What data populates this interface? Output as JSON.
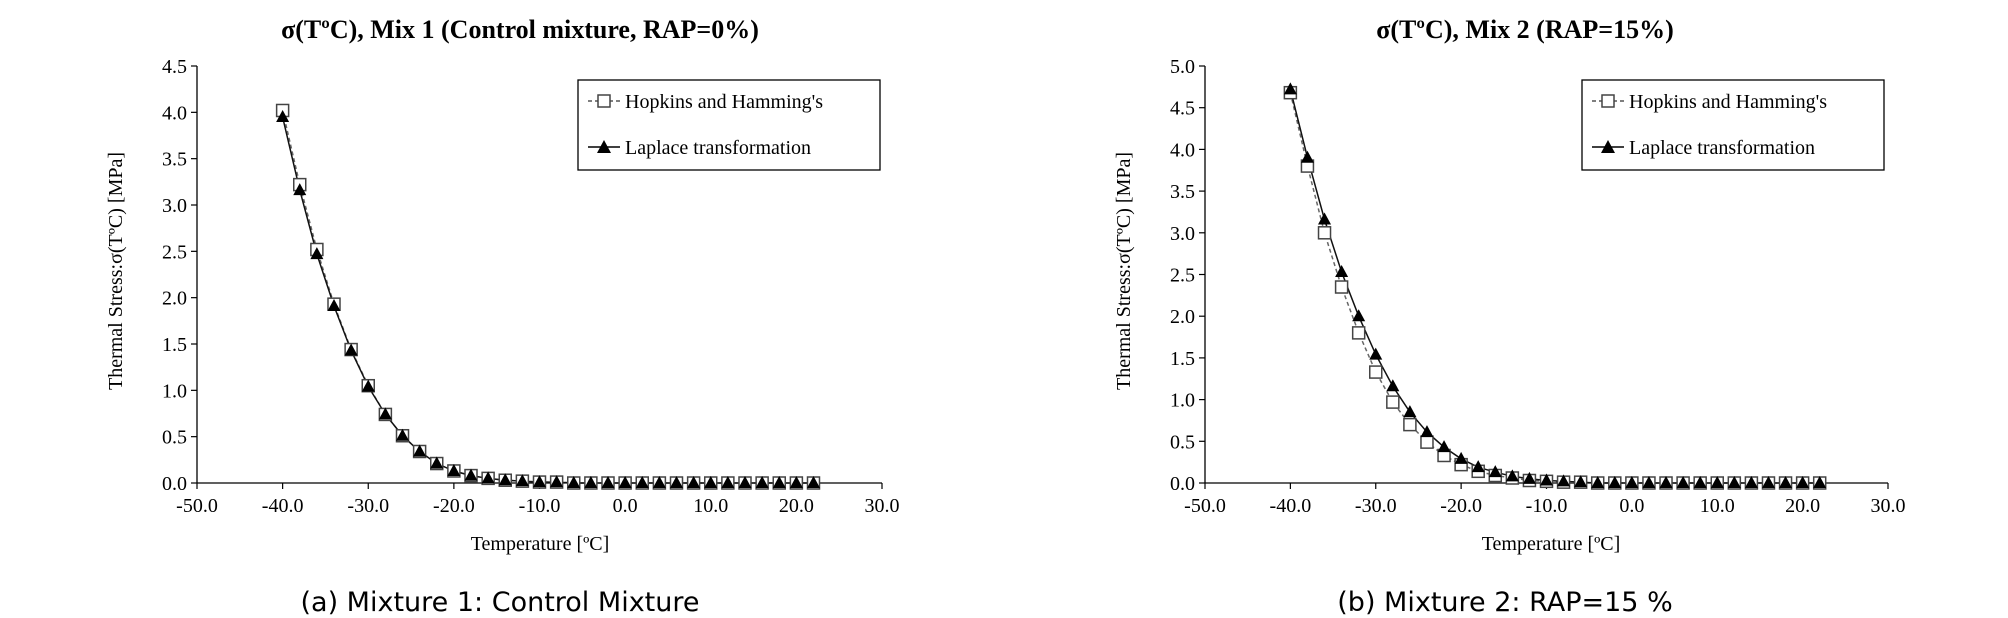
{
  "chart_data": [
    {
      "type": "line",
      "title": "σ(TºC), Mix 1 (Control mixture, RAP=0%)",
      "caption": "(a) Mixture 1: Control Mixture",
      "xlabel": "Temperature [ºC]",
      "ylabel": "Thermal Stress:σ(TºC) [MPa]",
      "xlim": [
        -50,
        30
      ],
      "ylim": [
        0,
        4.5
      ],
      "x_ticks": [
        "-50.0",
        "-40.0",
        "-30.0",
        "-20.0",
        "-10.0",
        "0.0",
        "10.0",
        "20.0",
        "30.0"
      ],
      "y_ticks": [
        "0.0",
        "0.5",
        "1.0",
        "1.5",
        "2.0",
        "2.5",
        "3.0",
        "3.5",
        "4.0",
        "4.5"
      ],
      "legend_position": "top-right",
      "x": [
        -40,
        -38,
        -36,
        -34,
        -32,
        -30,
        -28,
        -26,
        -24,
        -22,
        -20,
        -18,
        -16,
        -14,
        -12,
        -10,
        -8,
        -6,
        -4,
        -2,
        0,
        2,
        4,
        6,
        8,
        10,
        12,
        14,
        16,
        18,
        20,
        22
      ],
      "series": [
        {
          "name": "Hopkins and Hamming's",
          "marker": "open-square",
          "line": "dashed",
          "values": [
            4.02,
            3.22,
            2.52,
            1.93,
            1.44,
            1.05,
            0.74,
            0.51,
            0.34,
            0.21,
            0.13,
            0.08,
            0.05,
            0.03,
            0.02,
            0.01,
            0.01,
            0.0,
            0.0,
            0.0,
            0.0,
            0.0,
            0.0,
            0.0,
            0.0,
            0.0,
            0.0,
            0.0,
            0.0,
            0.0,
            0.0,
            0.0
          ]
        },
        {
          "name": "Laplace transformation",
          "marker": "filled-triangle",
          "line": "solid",
          "values": [
            3.95,
            3.16,
            2.47,
            1.91,
            1.43,
            1.04,
            0.74,
            0.51,
            0.34,
            0.21,
            0.13,
            0.08,
            0.05,
            0.03,
            0.02,
            0.01,
            0.01,
            0.0,
            0.0,
            0.0,
            0.0,
            0.0,
            0.0,
            0.0,
            0.0,
            0.0,
            0.0,
            0.0,
            0.0,
            0.0,
            0.0,
            0.0
          ]
        }
      ]
    },
    {
      "type": "line",
      "title": "σ(TºC), Mix 2 (RAP=15%)",
      "caption": "(b) Mixture 2: RAP=15 %",
      "xlabel": "Temperature [ºC]",
      "ylabel": "Thermal Stress:σ(TºC) [MPa]",
      "xlim": [
        -50,
        30
      ],
      "ylim": [
        0,
        5
      ],
      "x_ticks": [
        "-50.0",
        "-40.0",
        "-30.0",
        "-20.0",
        "-10.0",
        "0.0",
        "10.0",
        "20.0",
        "30.0"
      ],
      "y_ticks": [
        "0.0",
        "0.5",
        "1.0",
        "1.5",
        "2.0",
        "2.5",
        "3.0",
        "3.5",
        "4.0",
        "4.5",
        "5.0"
      ],
      "legend_position": "top-right",
      "x": [
        -40,
        -38,
        -36,
        -34,
        -32,
        -30,
        -28,
        -26,
        -24,
        -22,
        -20,
        -18,
        -16,
        -14,
        -12,
        -10,
        -8,
        -6,
        -4,
        -2,
        0,
        2,
        4,
        6,
        8,
        10,
        12,
        14,
        16,
        18,
        20,
        22
      ],
      "series": [
        {
          "name": "Hopkins and Hamming's",
          "marker": "open-square",
          "line": "dashed",
          "values": [
            4.68,
            3.8,
            3.0,
            2.35,
            1.8,
            1.33,
            0.97,
            0.7,
            0.49,
            0.33,
            0.22,
            0.14,
            0.09,
            0.06,
            0.03,
            0.02,
            0.01,
            0.01,
            0.0,
            0.0,
            0.0,
            0.0,
            0.0,
            0.0,
            0.0,
            0.0,
            0.0,
            0.0,
            0.0,
            0.0,
            0.0,
            0.0
          ]
        },
        {
          "name": "Laplace transformation",
          "marker": "filled-triangle",
          "line": "solid",
          "values": [
            4.72,
            3.9,
            3.16,
            2.53,
            2.0,
            1.54,
            1.16,
            0.85,
            0.61,
            0.43,
            0.29,
            0.19,
            0.13,
            0.08,
            0.05,
            0.03,
            0.02,
            0.01,
            0.0,
            0.0,
            0.0,
            0.0,
            0.0,
            0.0,
            0.0,
            0.0,
            0.0,
            0.0,
            0.0,
            0.0,
            0.0,
            0.0
          ]
        }
      ]
    }
  ]
}
